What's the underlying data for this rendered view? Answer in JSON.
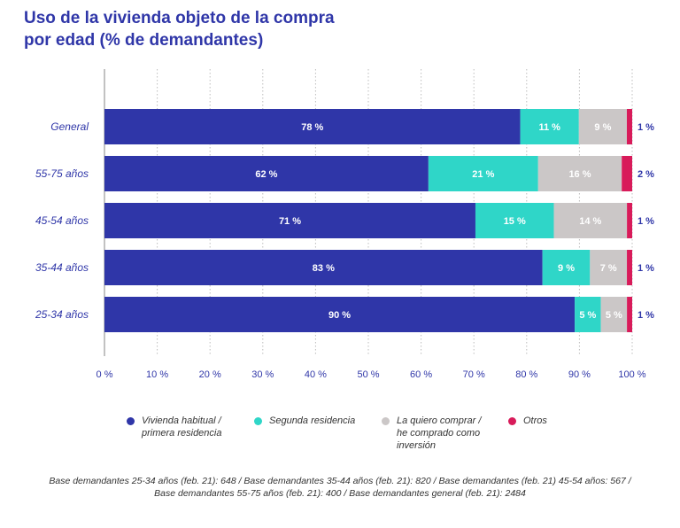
{
  "title": {
    "line1": "Uso de la vivienda objeto de la compra",
    "line2": "por edad (% de demandantes)"
  },
  "colors": {
    "series": [
      "#2f36a8",
      "#2fd6c8",
      "#cbc7c7",
      "#d81b5a"
    ],
    "label_light": "#ffffff",
    "label_dark": "#2f36a8"
  },
  "chart_data": {
    "type": "bar",
    "orientation": "horizontal",
    "stacked": true,
    "title": "Uso de la vivienda objeto de la compra por edad (% de demandantes)",
    "categories": [
      "General",
      "55-75 años",
      "45-54 años",
      "35-44 años",
      "25-34 años"
    ],
    "series": [
      {
        "name": "Vivienda habitual / primera residencia",
        "values": [
          78,
          62,
          71,
          83,
          90
        ],
        "labels": [
          "78 %",
          "62 %",
          "71 %",
          "83 %",
          "90 %"
        ]
      },
      {
        "name": "Segunda residencia",
        "values": [
          11,
          21,
          15,
          9,
          5
        ],
        "labels": [
          "11 %",
          "21 %",
          "15 %",
          "9 %",
          "5 %"
        ]
      },
      {
        "name": "La quiero comprar / he comprado como inversión",
        "values": [
          9,
          16,
          14,
          7,
          5
        ],
        "labels": [
          "9 %",
          "16 %",
          "14 %",
          "7 %",
          "5 %"
        ]
      },
      {
        "name": "Otros",
        "values": [
          1,
          2,
          1,
          1,
          1
        ],
        "labels": [
          "1 %",
          "2 %",
          "1 %",
          "1 %",
          "1 %"
        ]
      }
    ],
    "xlim": [
      0,
      100
    ],
    "xticks": [
      0,
      10,
      20,
      30,
      40,
      50,
      60,
      70,
      80,
      90,
      100
    ],
    "xtick_labels": [
      "0 %",
      "10 %",
      "20 %",
      "30 %",
      "40 %",
      "50 %",
      "60 %",
      "70 %",
      "80 %",
      "90 %",
      "100 %"
    ],
    "grid": true,
    "legend_position": "bottom"
  },
  "legend": [
    {
      "label": "Vivienda habitual /\nprimera residencia"
    },
    {
      "label": "Segunda residencia"
    },
    {
      "label": "La quiero comprar /\nhe comprado como\ninversión"
    },
    {
      "label": "Otros"
    }
  ],
  "note": {
    "line1": "Base demandantes 25-34 años (feb. 21): 648 / Base demandantes 35-44 años (feb. 21): 820 / Base demandantes (feb. 21) 45-54 años: 567 /",
    "line2": "Base demandantes 55-75 años (feb. 21): 400 / Base demandantes general (feb. 21): 2484"
  }
}
